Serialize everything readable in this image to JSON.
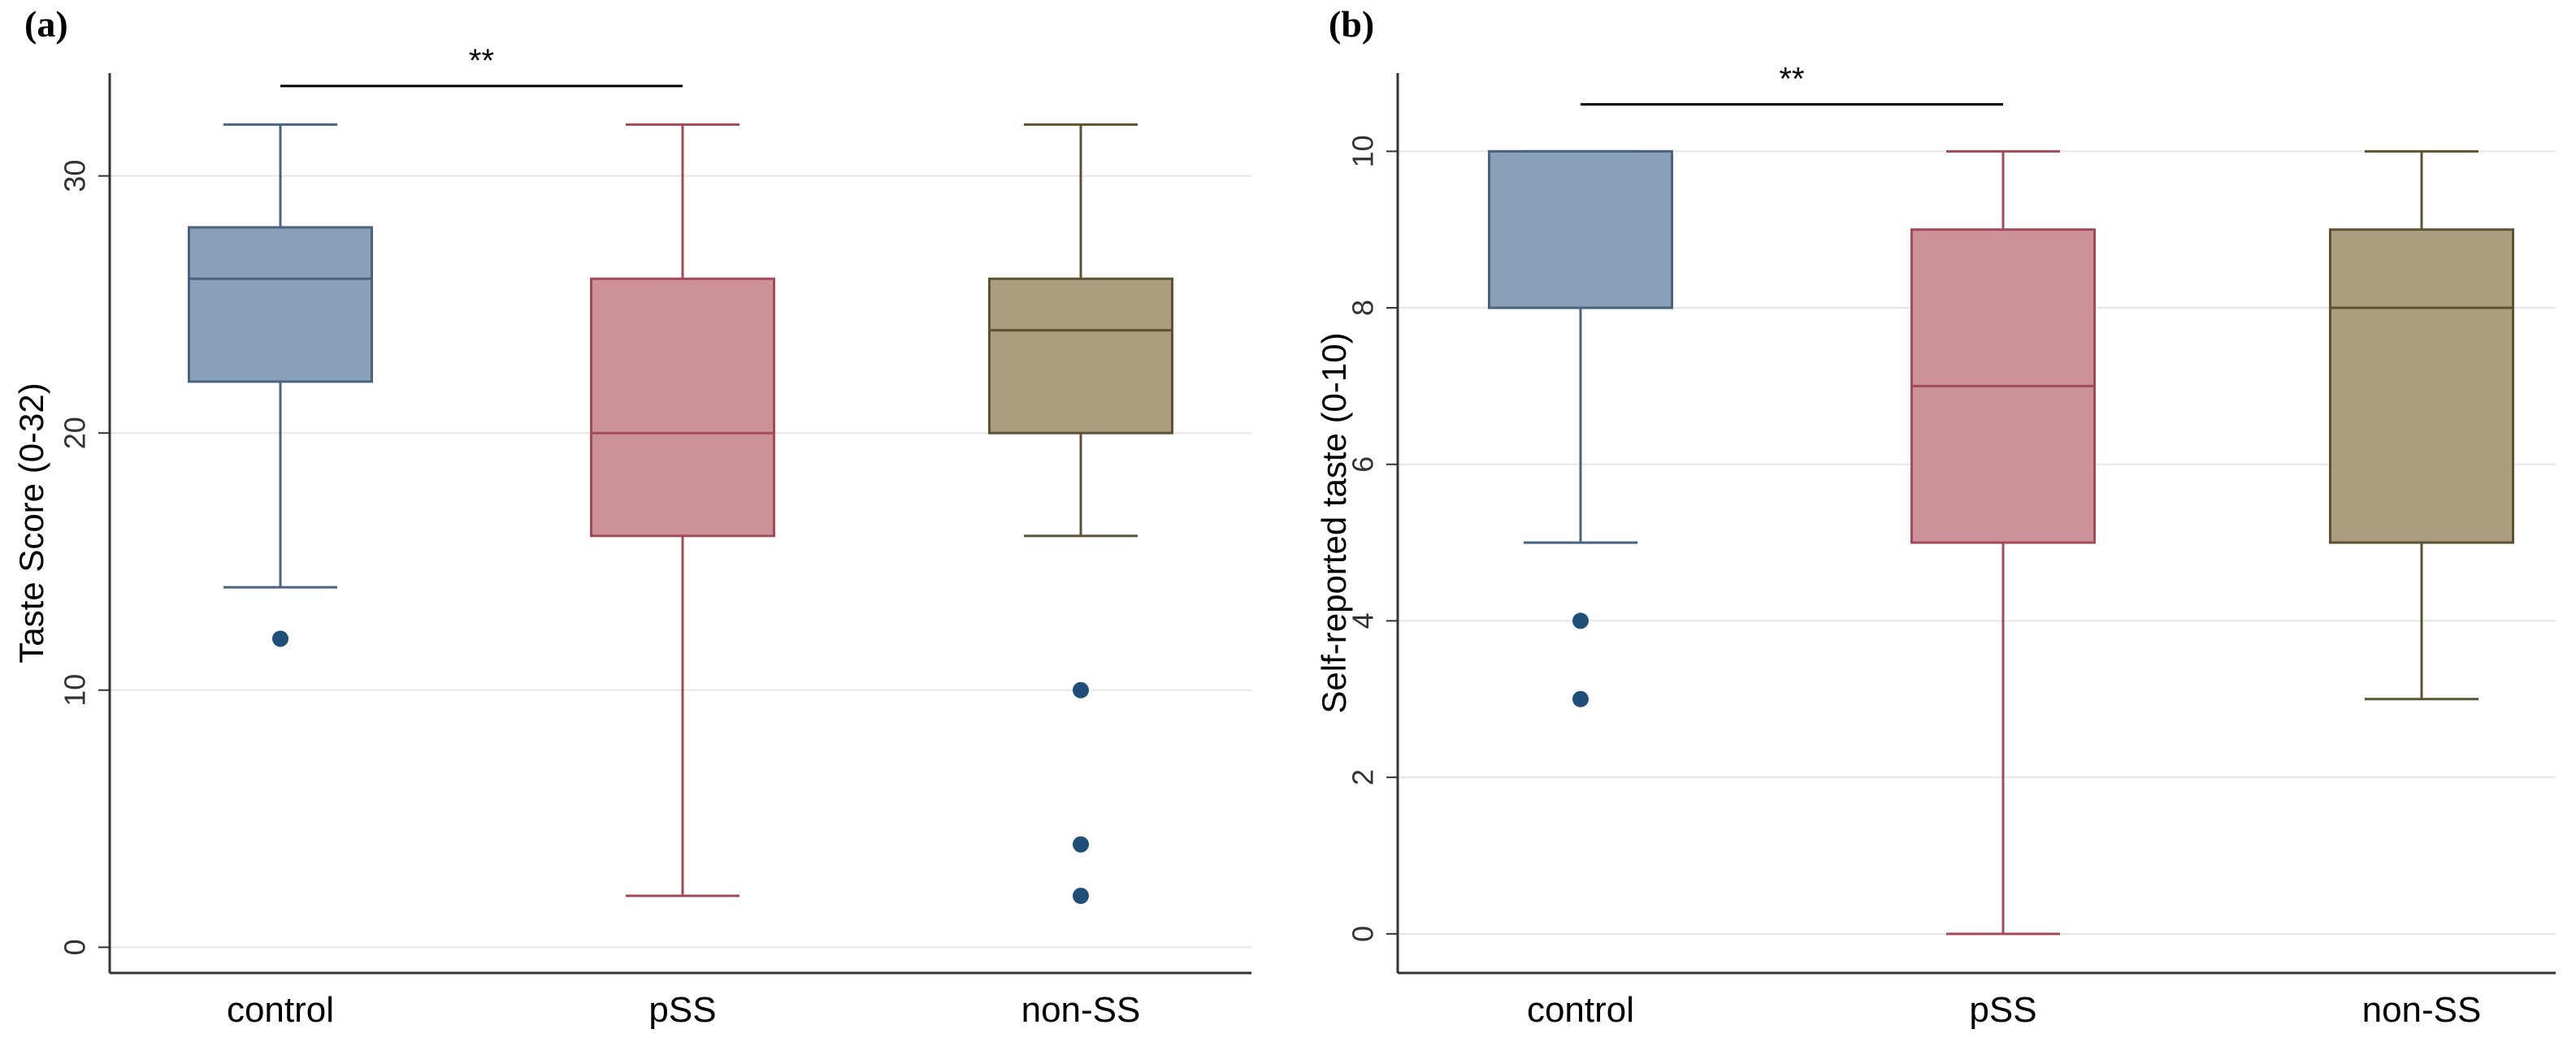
{
  "chart_data": [
    {
      "type": "box",
      "panel_label": "(a)",
      "title": "",
      "xlabel": "",
      "ylabel": "Taste Score (0-32)",
      "ylim": [
        -1,
        34
      ],
      "yticks": [
        0,
        10,
        20,
        30
      ],
      "grid": true,
      "categories": [
        "control",
        "pSS",
        "non-SS"
      ],
      "boxes": [
        {
          "name": "control",
          "whisker_low": 14,
          "q1": 22,
          "median": 26,
          "q3": 28,
          "whisker_high": 32,
          "outliers": [
            12
          ],
          "fill": "#8aa0b8",
          "stroke": "#4a6480"
        },
        {
          "name": "pSS",
          "whisker_low": 2,
          "q1": 16,
          "median": 20,
          "q3": 26,
          "whisker_high": 32,
          "outliers": [],
          "fill": "#cc9199",
          "stroke": "#a34a58"
        },
        {
          "name": "non-SS",
          "whisker_low": 16,
          "q1": 20,
          "median": 24,
          "q3": 26,
          "whisker_high": 32,
          "outliers": [
            10,
            4,
            2
          ],
          "fill": "#ab9d7f",
          "stroke": "#5e5232"
        }
      ],
      "significance": {
        "from": "control",
        "to": "pSS",
        "y": 33.5,
        "label": "**"
      }
    },
    {
      "type": "box",
      "panel_label": "(b)",
      "title": "",
      "xlabel": "",
      "ylabel": "Self-reported taste (0-10)",
      "ylim": [
        -0.5,
        11
      ],
      "yticks": [
        0,
        2,
        4,
        6,
        8,
        10
      ],
      "grid": true,
      "categories": [
        "control",
        "pSS",
        "non-SS"
      ],
      "boxes": [
        {
          "name": "control",
          "whisker_low": 5,
          "q1": 8,
          "median": 10,
          "q3": 10,
          "whisker_high": 10,
          "outliers": [
            4,
            3
          ],
          "fill": "#8aa0b8",
          "stroke": "#4a6480"
        },
        {
          "name": "pSS",
          "whisker_low": 0,
          "q1": 5,
          "median": 7,
          "q3": 9,
          "whisker_high": 10,
          "outliers": [],
          "fill": "#cc9199",
          "stroke": "#a34a58"
        },
        {
          "name": "non-SS",
          "whisker_low": 3,
          "q1": 5,
          "median": 8,
          "q3": 9,
          "whisker_high": 10,
          "outliers": [],
          "fill": "#ab9d7f",
          "stroke": "#5e5232"
        }
      ],
      "significance": {
        "from": "control",
        "to": "pSS",
        "y": 10.6,
        "label": "**"
      }
    }
  ],
  "colors": {
    "outlier": "#1f4e79",
    "axis": "#333333",
    "grid": "#e6e6e6"
  }
}
